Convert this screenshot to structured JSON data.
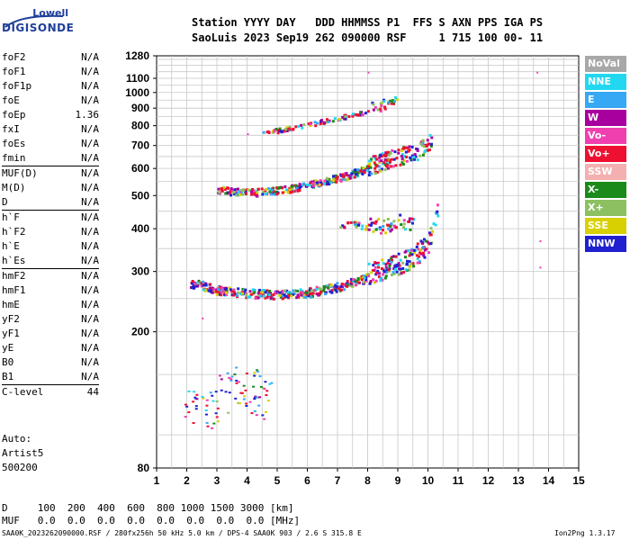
{
  "logo": {
    "company": "Lowell",
    "product": "DIGISONDE"
  },
  "header": {
    "line1": "Station YYYY DAY   DDD HHMMSS P1  FFS S AXN PPS IGA PS",
    "line2": "SaoLuis 2023 Sep19 262 090000 RSF     1 715 100 00- 11"
  },
  "params": {
    "group1": [
      {
        "name": "foF2",
        "value": "N/A"
      },
      {
        "name": "foF1",
        "value": "N/A"
      },
      {
        "name": "foF1p",
        "value": "N/A"
      },
      {
        "name": "foE",
        "value": "N/A"
      },
      {
        "name": "foEp",
        "value": "1.36"
      },
      {
        "name": "fxI",
        "value": "N/A"
      },
      {
        "name": "foEs",
        "value": "N/A"
      },
      {
        "name": "fmin",
        "value": "N/A"
      }
    ],
    "group2": [
      {
        "name": "MUF(D)",
        "value": "N/A"
      },
      {
        "name": "M(D)",
        "value": "N/A"
      },
      {
        "name": "D",
        "value": "N/A"
      }
    ],
    "group3": [
      {
        "name": "h`F",
        "value": "N/A"
      },
      {
        "name": "h`F2",
        "value": "N/A"
      },
      {
        "name": "h`E",
        "value": "N/A"
      },
      {
        "name": "h`Es",
        "value": "N/A"
      }
    ],
    "group4": [
      {
        "name": "hmF2",
        "value": "N/A"
      },
      {
        "name": "hmF1",
        "value": "N/A"
      },
      {
        "name": "hmE",
        "value": "N/A"
      },
      {
        "name": "yF2",
        "value": "N/A"
      },
      {
        "name": "yF1",
        "value": "N/A"
      },
      {
        "name": "yE",
        "value": "N/A"
      },
      {
        "name": "B0",
        "value": "N/A"
      },
      {
        "name": "B1",
        "value": "N/A"
      }
    ],
    "group5": [
      {
        "name": "C-level",
        "value": "44"
      }
    ]
  },
  "auto": {
    "line1": "Auto:",
    "line2": "Artist5",
    "line3": "500200"
  },
  "legend": [
    {
      "label": "NoVal",
      "color": "#a8a8a8"
    },
    {
      "label": "NNE",
      "color": "#22d8f0"
    },
    {
      "label": "E",
      "color": "#36a8f4"
    },
    {
      "label": "W",
      "color": "#a8009e"
    },
    {
      "label": "Vo-",
      "color": "#f040b0"
    },
    {
      "label": "Vo+",
      "color": "#ee1030"
    },
    {
      "label": "SSW",
      "color": "#f4b0b0"
    },
    {
      "label": "X-",
      "color": "#1a8a1a"
    },
    {
      "label": "X+",
      "color": "#8cc060"
    },
    {
      "label": "SSE",
      "color": "#d8d000"
    },
    {
      "label": "NNW",
      "color": "#2020d0"
    }
  ],
  "mufTable": {
    "dRow": "D     100  200  400  600  800 1000 1500 3000 [km]",
    "mufRow": "MUF   0.0  0.0  0.0  0.0  0.0  0.0  0.0  0.0 [MHz]"
  },
  "footer": {
    "left": "SAA0K_2023262090000.RSF / 280fx256h 50 kHz 5.0 km / DPS-4 SAA0K 903 / 2.6 S 315.8 E",
    "right": "Ion2Png 1.3.17"
  },
  "chart_data": {
    "type": "scatter",
    "title": "",
    "xlabel": "",
    "ylabel": "",
    "xlim": [
      1,
      15
    ],
    "ylim": [
      80,
      1280
    ],
    "y_scale": "log",
    "xticks": [
      1,
      2,
      3,
      4,
      5,
      6,
      7,
      8,
      9,
      10,
      11,
      12,
      13,
      14,
      15
    ],
    "yticks": [
      80,
      200,
      300,
      400,
      500,
      600,
      700,
      800,
      900,
      1000,
      1100,
      1280
    ],
    "grid": true,
    "traces": [
      {
        "name": "E/Es low echoes",
        "x_range": [
          1.9,
          4.8
        ],
        "y_approx": 120
      },
      {
        "name": "F2 first-hop trace",
        "points": [
          [
            2.1,
            275
          ],
          [
            2.6,
            268
          ],
          [
            3,
            262
          ],
          [
            4,
            256
          ],
          [
            5,
            254
          ],
          [
            6,
            257
          ],
          [
            7,
            268
          ],
          [
            8,
            285
          ],
          [
            9,
            305
          ],
          [
            9.5,
            320
          ],
          [
            10,
            350
          ],
          [
            10.2,
            395
          ],
          [
            10.3,
            445
          ],
          [
            10.3,
            480
          ]
        ]
      },
      {
        "name": "F2 second-hop trace",
        "points": [
          [
            3,
            515
          ],
          [
            4,
            505
          ],
          [
            5,
            512
          ],
          [
            6,
            530
          ],
          [
            7,
            558
          ],
          [
            8,
            592
          ],
          [
            9,
            630
          ],
          [
            9.7,
            660
          ],
          [
            10,
            690
          ],
          [
            10.1,
            720
          ]
        ]
      },
      {
        "name": "F2 third-hop trace",
        "points": [
          [
            4.5,
            760
          ],
          [
            5.5,
            785
          ],
          [
            6.5,
            820
          ],
          [
            7.5,
            860
          ],
          [
            8.5,
            905
          ],
          [
            9,
            940
          ]
        ]
      },
      {
        "name": "Spread echoes",
        "points": [
          [
            7,
            405
          ],
          [
            7.5,
            410
          ],
          [
            8,
            400
          ],
          [
            8.5,
            398
          ],
          [
            9,
            410
          ],
          [
            9.5,
            405
          ]
        ]
      }
    ]
  }
}
